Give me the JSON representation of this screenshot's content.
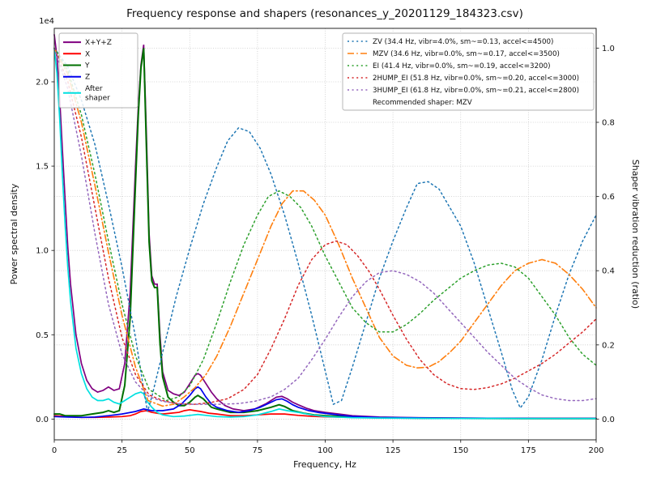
{
  "chart_data": {
    "type": "line",
    "title": "Frequency response and shapers (resonances_y_20201129_184323.csv)",
    "xlabel": "Frequency, Hz",
    "ylabel_left": "Power spectral density",
    "ylabel_right": "Shaper vibration reduction (ratio)",
    "y_left_offset": "1e4",
    "y_left_units": "1e4",
    "xlim": [
      0,
      200
    ],
    "ylim_left": [
      -0.123,
      2.317
    ],
    "ylim_right": [
      -0.0559,
      1.0533
    ],
    "x_ticks": [
      0,
      25,
      50,
      75,
      100,
      125,
      150,
      175,
      200
    ],
    "y_left_ticks": [
      0.0,
      0.5,
      1.0,
      1.5,
      2.0
    ],
    "y_right_ticks": [
      0.0,
      0.2,
      0.4,
      0.6,
      0.8,
      1.0
    ],
    "grid": true,
    "recommended_shaper": "MZV",
    "legend_left": {
      "position": "upper left",
      "items": [
        {
          "id": "xyz",
          "label": "X+Y+Z",
          "color": "#800080",
          "linestyle": "solid"
        },
        {
          "id": "x",
          "label": "X",
          "color": "#ff0000",
          "linestyle": "solid"
        },
        {
          "id": "y",
          "label": "Y",
          "color": "#007000",
          "linestyle": "solid"
        },
        {
          "id": "z",
          "label": "Z",
          "color": "#0000ee",
          "linestyle": "solid"
        },
        {
          "id": "after-shaper",
          "label": "After\nshaper",
          "color": "#00e0e0",
          "linestyle": "solid"
        }
      ]
    },
    "legend_right": {
      "position": "upper right",
      "items": [
        {
          "id": "zv",
          "label": "ZV (34.4 Hz, vibr=4.0%, sm~=0.13, accel<=4500)",
          "color": "#1f77b4",
          "linestyle": "dotted"
        },
        {
          "id": "mzv",
          "label": "MZV (34.6 Hz, vibr=0.0%, sm~=0.17, accel<=3500)",
          "color": "#ff7f0e",
          "linestyle": "dashdot"
        },
        {
          "id": "ei",
          "label": "EI (41.4 Hz, vibr=0.0%, sm~=0.19, accel<=3200)",
          "color": "#2ca02c",
          "linestyle": "dotted"
        },
        {
          "id": "2hump-ei",
          "label": "2HUMP_EI (51.8 Hz, vibr=0.0%, sm~=0.20, accel<=3000)",
          "color": "#d62728",
          "linestyle": "dotted"
        },
        {
          "id": "3hump-ei",
          "label": "3HUMP_EI (61.8 Hz, vibr=0.0%, sm~=0.21, accel<=2800)",
          "color": "#9467bd",
          "linestyle": "dotted"
        }
      ],
      "note": "Recommended shaper: MZV"
    },
    "series": [
      {
        "id": "xyz",
        "name": "X+Y+Z",
        "axis": "left",
        "color": "#800080",
        "linestyle": "solid",
        "width": 1.7,
        "x": [
          0,
          1,
          2,
          3,
          4,
          5,
          6,
          8,
          10,
          12,
          14,
          16,
          18,
          20,
          22,
          24,
          26,
          28,
          30,
          31,
          32,
          33,
          34,
          35,
          36,
          37,
          38,
          39,
          40,
          42,
          44,
          46,
          48,
          50,
          52,
          53,
          54,
          56,
          58,
          60,
          63,
          66,
          70,
          74,
          78,
          80,
          82,
          84,
          86,
          88,
          90,
          93,
          96,
          100,
          105,
          110,
          120,
          130,
          140,
          150,
          160,
          170,
          180,
          190,
          200
        ],
        "y": [
          2.28,
          2.15,
          1.9,
          1.6,
          1.3,
          1.02,
          0.8,
          0.5,
          0.33,
          0.23,
          0.18,
          0.16,
          0.17,
          0.19,
          0.17,
          0.18,
          0.33,
          0.75,
          1.5,
          1.85,
          2.1,
          2.22,
          1.7,
          1.1,
          0.85,
          0.8,
          0.8,
          0.5,
          0.28,
          0.17,
          0.15,
          0.14,
          0.16,
          0.21,
          0.26,
          0.27,
          0.26,
          0.21,
          0.16,
          0.12,
          0.08,
          0.06,
          0.05,
          0.06,
          0.09,
          0.11,
          0.13,
          0.135,
          0.12,
          0.1,
          0.085,
          0.065,
          0.05,
          0.04,
          0.03,
          0.02,
          0.012,
          0.009,
          0.007,
          0.006,
          0.005,
          0.005,
          0.004,
          0.004,
          0.004
        ]
      },
      {
        "id": "x",
        "name": "X",
        "axis": "left",
        "color": "#ff0000",
        "linestyle": "solid",
        "width": 1.7,
        "x": [
          0,
          5,
          10,
          15,
          20,
          25,
          28,
          30,
          32,
          34,
          36,
          38,
          40,
          43,
          46,
          48,
          50,
          52,
          54,
          57,
          60,
          65,
          70,
          75,
          80,
          85,
          90,
          95,
          100,
          110,
          120,
          140,
          160,
          180,
          200
        ],
        "y": [
          0.02,
          0.015,
          0.01,
          0.01,
          0.012,
          0.015,
          0.02,
          0.03,
          0.045,
          0.05,
          0.04,
          0.035,
          0.03,
          0.035,
          0.04,
          0.05,
          0.055,
          0.05,
          0.045,
          0.035,
          0.03,
          0.02,
          0.02,
          0.025,
          0.03,
          0.03,
          0.022,
          0.017,
          0.013,
          0.01,
          0.007,
          0.005,
          0.004,
          0.003,
          0.003
        ]
      },
      {
        "id": "y",
        "name": "Y",
        "axis": "left",
        "color": "#007000",
        "linestyle": "solid",
        "width": 2.0,
        "x": [
          0,
          2,
          4,
          6,
          8,
          10,
          14,
          18,
          20,
          22,
          24,
          26,
          28,
          30,
          31,
          32,
          33,
          34,
          35,
          36,
          37,
          38,
          39,
          40,
          42,
          44,
          46,
          48,
          50,
          52,
          53,
          55,
          58,
          60,
          65,
          70,
          75,
          80,
          83,
          85,
          88,
          92,
          96,
          100,
          110,
          120,
          140,
          160,
          180,
          200
        ],
        "y": [
          0.03,
          0.03,
          0.02,
          0.02,
          0.02,
          0.02,
          0.03,
          0.04,
          0.05,
          0.04,
          0.05,
          0.2,
          0.6,
          1.4,
          1.8,
          2.08,
          2.2,
          1.62,
          1.05,
          0.82,
          0.78,
          0.78,
          0.45,
          0.25,
          0.13,
          0.1,
          0.08,
          0.08,
          0.1,
          0.13,
          0.14,
          0.12,
          0.07,
          0.06,
          0.04,
          0.04,
          0.05,
          0.07,
          0.085,
          0.075,
          0.05,
          0.035,
          0.025,
          0.02,
          0.012,
          0.008,
          0.005,
          0.004,
          0.003,
          0.003
        ]
      },
      {
        "id": "z",
        "name": "Z",
        "axis": "left",
        "color": "#0000ee",
        "linestyle": "solid",
        "width": 1.7,
        "x": [
          0,
          5,
          10,
          15,
          20,
          25,
          30,
          33,
          36,
          40,
          44,
          47,
          50,
          52,
          53,
          54,
          56,
          58,
          60,
          64,
          68,
          72,
          76,
          80,
          82,
          84,
          86,
          88,
          90,
          94,
          98,
          102,
          106,
          110,
          120,
          130,
          140,
          160,
          180,
          200
        ],
        "y": [
          0.015,
          0.012,
          0.01,
          0.012,
          0.02,
          0.03,
          0.045,
          0.06,
          0.05,
          0.05,
          0.06,
          0.09,
          0.14,
          0.18,
          0.19,
          0.18,
          0.13,
          0.09,
          0.07,
          0.05,
          0.04,
          0.05,
          0.07,
          0.1,
          0.115,
          0.12,
          0.105,
          0.085,
          0.07,
          0.05,
          0.038,
          0.03,
          0.022,
          0.016,
          0.01,
          0.008,
          0.006,
          0.005,
          0.004,
          0.004
        ]
      },
      {
        "id": "after-shaper",
        "name": "After shaper",
        "axis": "left",
        "color": "#00e0e0",
        "linestyle": "solid",
        "width": 1.7,
        "x": [
          0,
          1,
          2,
          3,
          4,
          5,
          6,
          8,
          10,
          12,
          14,
          16,
          18,
          20,
          22,
          24,
          26,
          28,
          30,
          32,
          33,
          34,
          36,
          38,
          40,
          44,
          48,
          50,
          53,
          56,
          60,
          65,
          70,
          75,
          80,
          83,
          86,
          90,
          95,
          100,
          110,
          120,
          140,
          160,
          180,
          200
        ],
        "y": [
          2.2,
          2.05,
          1.78,
          1.45,
          1.15,
          0.9,
          0.7,
          0.42,
          0.27,
          0.18,
          0.13,
          0.11,
          0.11,
          0.12,
          0.1,
          0.09,
          0.11,
          0.13,
          0.15,
          0.16,
          0.15,
          0.11,
          0.07,
          0.04,
          0.025,
          0.015,
          0.018,
          0.022,
          0.028,
          0.022,
          0.015,
          0.012,
          0.015,
          0.025,
          0.045,
          0.06,
          0.05,
          0.04,
          0.025,
          0.015,
          0.008,
          0.006,
          0.004,
          0.004,
          0.003,
          0.003
        ]
      },
      {
        "id": "zv",
        "name": "ZV",
        "axis": "right",
        "color": "#1f77b4",
        "linestyle": "dotted",
        "width": 1.5,
        "x": [
          0,
          5,
          10,
          15,
          20,
          25,
          30,
          33,
          34.4,
          36,
          40,
          45,
          50,
          55,
          60,
          64,
          68,
          72,
          76,
          80,
          85,
          90,
          95,
          100,
          103,
          106,
          110,
          115,
          120,
          125,
          130,
          134,
          138,
          142,
          146,
          150,
          155,
          160,
          165,
          169,
          172,
          175,
          180,
          185,
          190,
          195,
          200
        ],
        "y": [
          1.0,
          0.95,
          0.86,
          0.74,
          0.58,
          0.41,
          0.22,
          0.08,
          0.02,
          0.06,
          0.18,
          0.33,
          0.46,
          0.58,
          0.68,
          0.75,
          0.785,
          0.775,
          0.73,
          0.66,
          0.55,
          0.42,
          0.28,
          0.13,
          0.04,
          0.05,
          0.14,
          0.26,
          0.38,
          0.48,
          0.57,
          0.635,
          0.64,
          0.62,
          0.57,
          0.52,
          0.42,
          0.3,
          0.18,
          0.08,
          0.03,
          0.06,
          0.16,
          0.28,
          0.39,
          0.48,
          0.55
        ]
      },
      {
        "id": "mzv",
        "name": "MZV",
        "axis": "right",
        "color": "#ff7f0e",
        "linestyle": "dashdot",
        "width": 1.6,
        "x": [
          0,
          5,
          10,
          15,
          20,
          25,
          30,
          34.6,
          40,
          44,
          48,
          52,
          56,
          60,
          65,
          70,
          75,
          80,
          84,
          88,
          92,
          96,
          100,
          105,
          110,
          115,
          120,
          125,
          130,
          134,
          138,
          142,
          146,
          150,
          155,
          160,
          165,
          170,
          175,
          180,
          185,
          190,
          195,
          200
        ],
        "y": [
          1.0,
          0.93,
          0.8,
          0.63,
          0.45,
          0.28,
          0.14,
          0.05,
          0.035,
          0.04,
          0.06,
          0.085,
          0.12,
          0.17,
          0.25,
          0.34,
          0.43,
          0.52,
          0.58,
          0.615,
          0.615,
          0.59,
          0.55,
          0.47,
          0.38,
          0.3,
          0.22,
          0.17,
          0.145,
          0.138,
          0.14,
          0.155,
          0.18,
          0.21,
          0.26,
          0.31,
          0.36,
          0.4,
          0.42,
          0.43,
          0.42,
          0.39,
          0.35,
          0.3
        ]
      },
      {
        "id": "ei",
        "name": "EI",
        "axis": "right",
        "color": "#2ca02c",
        "linestyle": "dotted",
        "width": 1.5,
        "x": [
          0,
          5,
          10,
          15,
          20,
          25,
          30,
          35,
          41.4,
          46,
          50,
          55,
          60,
          65,
          70,
          75,
          79,
          83,
          87,
          91,
          95,
          100,
          105,
          110,
          115,
          120,
          125,
          130,
          135,
          140,
          145,
          150,
          155,
          160,
          165,
          170,
          175,
          180,
          185,
          190,
          195,
          200
        ],
        "y": [
          1.0,
          0.94,
          0.82,
          0.66,
          0.48,
          0.31,
          0.17,
          0.08,
          0.05,
          0.06,
          0.09,
          0.16,
          0.26,
          0.37,
          0.47,
          0.55,
          0.6,
          0.615,
          0.6,
          0.57,
          0.52,
          0.44,
          0.37,
          0.3,
          0.26,
          0.235,
          0.235,
          0.255,
          0.285,
          0.32,
          0.35,
          0.38,
          0.4,
          0.415,
          0.42,
          0.41,
          0.38,
          0.33,
          0.28,
          0.22,
          0.175,
          0.145
        ]
      },
      {
        "id": "2hump-ei",
        "name": "2HUMP_EI",
        "axis": "right",
        "color": "#d62728",
        "linestyle": "dotted",
        "width": 1.5,
        "x": [
          0,
          5,
          10,
          15,
          20,
          25,
          30,
          35,
          40,
          45,
          51.8,
          58,
          64,
          70,
          75,
          80,
          85,
          90,
          95,
          100,
          104,
          108,
          112,
          116,
          120,
          125,
          130,
          135,
          140,
          145,
          150,
          155,
          160,
          165,
          170,
          175,
          180,
          185,
          190,
          195,
          200
        ],
        "y": [
          1.0,
          0.91,
          0.76,
          0.57,
          0.38,
          0.22,
          0.12,
          0.065,
          0.05,
          0.042,
          0.04,
          0.045,
          0.055,
          0.08,
          0.12,
          0.19,
          0.27,
          0.36,
          0.43,
          0.47,
          0.48,
          0.47,
          0.44,
          0.4,
          0.35,
          0.28,
          0.215,
          0.16,
          0.12,
          0.095,
          0.082,
          0.08,
          0.085,
          0.095,
          0.11,
          0.13,
          0.15,
          0.175,
          0.205,
          0.235,
          0.27
        ]
      },
      {
        "id": "3hump-ei",
        "name": "3HUMP_EI",
        "axis": "right",
        "color": "#9467bd",
        "linestyle": "dotted",
        "width": 1.5,
        "x": [
          0,
          5,
          10,
          15,
          20,
          25,
          30,
          35,
          40,
          45,
          50,
          55,
          61.8,
          68,
          74,
          80,
          85,
          90,
          95,
          100,
          105,
          110,
          115,
          120,
          125,
          130,
          135,
          140,
          145,
          150,
          155,
          160,
          165,
          170,
          175,
          180,
          185,
          190,
          195,
          200
        ],
        "y": [
          1.0,
          0.89,
          0.71,
          0.5,
          0.31,
          0.175,
          0.1,
          0.06,
          0.048,
          0.042,
          0.04,
          0.04,
          0.04,
          0.042,
          0.048,
          0.06,
          0.08,
          0.11,
          0.16,
          0.215,
          0.275,
          0.33,
          0.37,
          0.395,
          0.4,
          0.39,
          0.37,
          0.34,
          0.3,
          0.26,
          0.22,
          0.18,
          0.145,
          0.11,
          0.085,
          0.065,
          0.055,
          0.05,
          0.05,
          0.055
        ]
      }
    ]
  }
}
